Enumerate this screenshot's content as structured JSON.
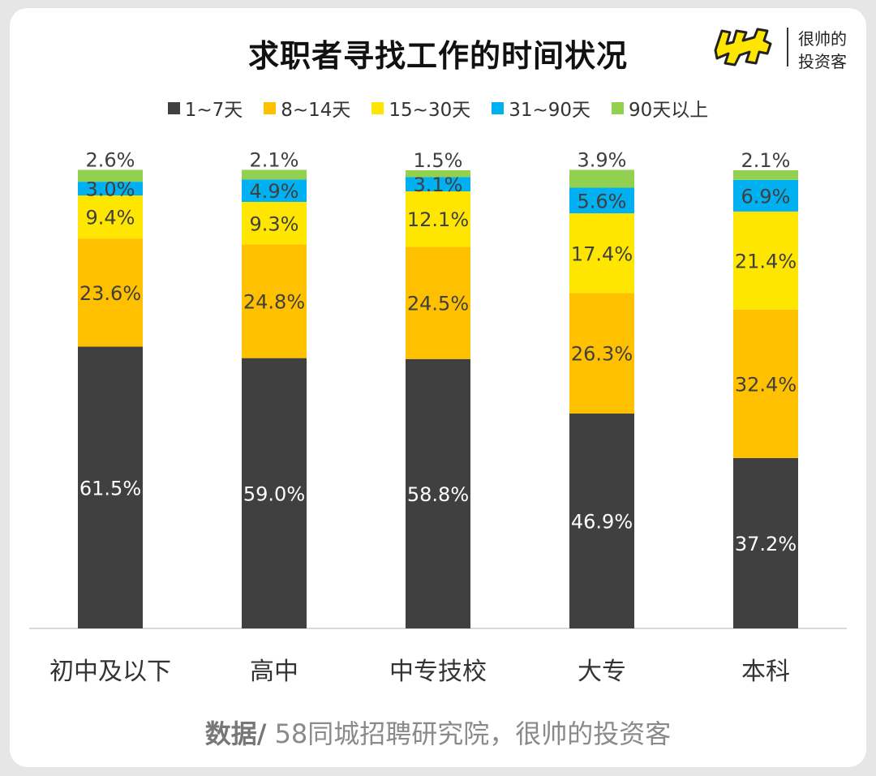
{
  "title": "求职者寻找工作的时间状况",
  "brand": {
    "line1": "很帅的",
    "line2": "投资客"
  },
  "source": {
    "label": "数据/",
    "text": " 58同城招聘研究院，很帅的投资客"
  },
  "colors": {
    "series": [
      "#404040",
      "#ffc000",
      "#ffe600",
      "#00b0f0",
      "#92d050"
    ],
    "baseline": "#d9d9d9",
    "label_dark": "#ffffff",
    "label_light": "#404040",
    "logo_fill": "#ffe600"
  },
  "chart_data": {
    "type": "bar",
    "stacked": true,
    "categories": [
      "初中及以下",
      "高中",
      "中专技校",
      "大专",
      "本科"
    ],
    "series": [
      {
        "name": "1~7天",
        "values": [
          61.5,
          59.0,
          58.8,
          46.9,
          37.2
        ],
        "labels": [
          "61.5%",
          "59.0%",
          "58.8%",
          "46.9%",
          "37.2%"
        ]
      },
      {
        "name": "8~14天",
        "values": [
          23.6,
          24.8,
          24.5,
          26.3,
          32.4
        ],
        "labels": [
          "23.6%",
          "24.8%",
          "24.5%",
          "26.3%",
          "32.4%"
        ]
      },
      {
        "name": "15~30天",
        "values": [
          9.4,
          9.3,
          12.1,
          17.4,
          21.4
        ],
        "labels": [
          "9.4%",
          "9.3%",
          "12.1%",
          "17.4%",
          "21.4%"
        ]
      },
      {
        "name": "31~90天",
        "values": [
          3.0,
          4.9,
          3.1,
          5.6,
          6.9
        ],
        "labels": [
          "3.0%",
          "4.9%",
          "3.1%",
          "5.6%",
          "6.9%"
        ]
      },
      {
        "name": "90天以上",
        "values": [
          2.6,
          2.1,
          1.5,
          3.9,
          2.1
        ],
        "labels": [
          "2.6%",
          "2.1%",
          "1.5%",
          "3.9%",
          "2.1%"
        ]
      }
    ],
    "ylim": [
      0,
      100
    ],
    "legend_position": "top",
    "grid": false
  }
}
